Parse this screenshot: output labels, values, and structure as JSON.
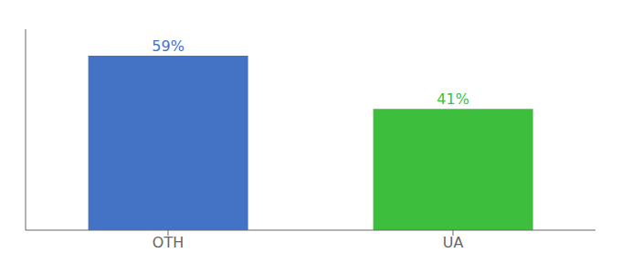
{
  "chart_data": {
    "type": "bar",
    "categories": [
      "OTH",
      "UA"
    ],
    "values": [
      59,
      41
    ],
    "value_labels": [
      "59%",
      "41%"
    ],
    "colors": [
      "#4472C4",
      "#3DBF3D"
    ],
    "ylim": [
      0,
      68
    ],
    "data_labels": true,
    "tick_labels": "x",
    "grid": false
  }
}
